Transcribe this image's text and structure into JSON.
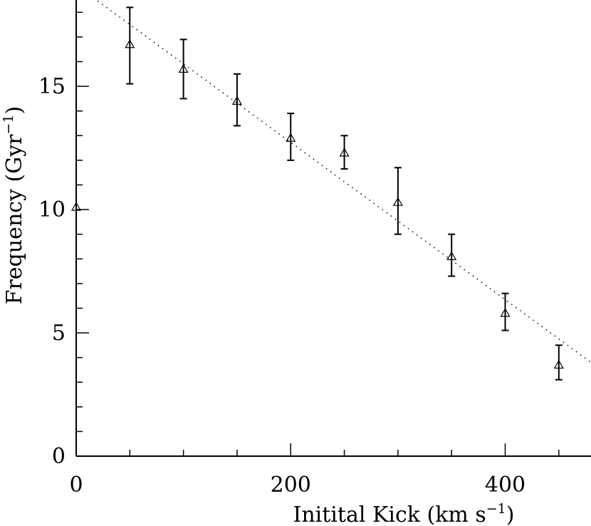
{
  "chart_data": {
    "type": "scatter",
    "xlabel_main": "Initital Kick (km s",
    "xlabel_exp": "−1",
    "xlabel_end": ")",
    "ylabel_main": "Frequency (Gyr",
    "ylabel_exp": "−1",
    "ylabel_end": ")",
    "xlim": [
      0,
      480
    ],
    "ylim": [
      0,
      18.5
    ],
    "x_ticks": [
      0,
      200,
      400
    ],
    "x_minor_ticks": [
      50,
      100,
      150,
      250,
      300,
      350,
      450
    ],
    "y_ticks": [
      0,
      5,
      10,
      15
    ],
    "y_minor_ticks": [
      1,
      2,
      3,
      4,
      6,
      7,
      8,
      9,
      11,
      12,
      13,
      14,
      16,
      17,
      18
    ],
    "points": [
      {
        "x": 0,
        "y": 10.1,
        "err_low": 0,
        "err_high": 0
      },
      {
        "x": 50,
        "y": 16.7,
        "err_low": 1.6,
        "err_high": 1.5
      },
      {
        "x": 100,
        "y": 15.7,
        "err_low": 1.2,
        "err_high": 1.2
      },
      {
        "x": 150,
        "y": 14.4,
        "err_low": 1.0,
        "err_high": 1.1
      },
      {
        "x": 200,
        "y": 12.9,
        "err_low": 0.9,
        "err_high": 1.0
      },
      {
        "x": 250,
        "y": 12.3,
        "err_low": 0.65,
        "err_high": 0.7
      },
      {
        "x": 300,
        "y": 10.3,
        "err_low": 1.3,
        "err_high": 1.4
      },
      {
        "x": 350,
        "y": 8.1,
        "err_low": 0.8,
        "err_high": 0.9
      },
      {
        "x": 400,
        "y": 5.8,
        "err_low": 0.7,
        "err_high": 0.8
      },
      {
        "x": 450,
        "y": 3.7,
        "err_low": 0.6,
        "err_high": 0.8
      }
    ],
    "fit_line": {
      "style": "dotted",
      "x": [
        0,
        480
      ],
      "y": [
        19.1,
        3.8
      ]
    },
    "grid": false,
    "legend": "none"
  }
}
